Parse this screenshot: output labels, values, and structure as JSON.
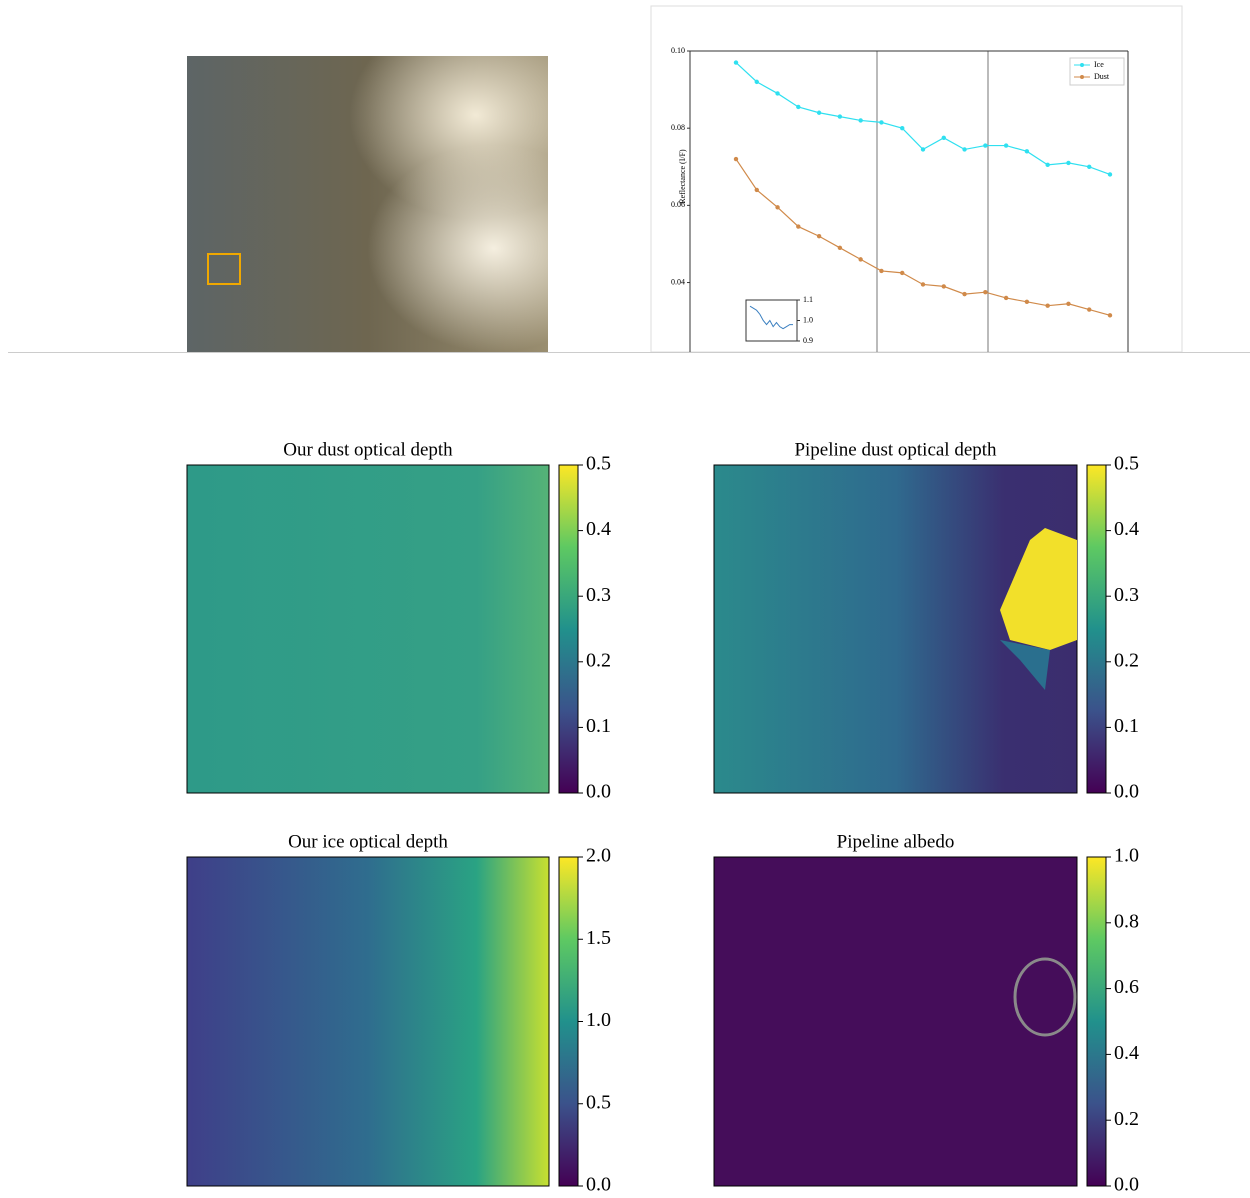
{
  "chart_data": [
    {
      "type": "line",
      "y_label": "Reflectance (I/F)",
      "categories": [
        null,
        null,
        null,
        null,
        null,
        null,
        null,
        null,
        null,
        null,
        null,
        null,
        null,
        null,
        null,
        null,
        null,
        null,
        null
      ],
      "ylim": [
        0.022,
        0.1
      ],
      "yticks": [
        0.04,
        0.06,
        0.08,
        {
          "value": 0.1,
          "label": "0.10"
        }
      ],
      "legend": "upper right",
      "series": [
        {
          "name": "Ice",
          "color": "#2fe0f0",
          "values": [
            0.097,
            0.092,
            0.089,
            0.0855,
            0.084,
            0.083,
            0.082,
            0.0815,
            0.08,
            0.0745,
            0.0775,
            0.0745,
            0.0755,
            0.0755,
            0.074,
            0.0705,
            0.071,
            0.07,
            0.068
          ]
        },
        {
          "name": "Dust",
          "color": "#d08a4a",
          "values": [
            0.072,
            0.064,
            0.0595,
            0.0545,
            0.052,
            0.049,
            0.046,
            0.043,
            0.0425,
            0.0395,
            0.039,
            0.037,
            0.0375,
            0.036,
            0.035,
            0.034,
            0.0345,
            0.033,
            0.0315
          ]
        }
      ]
    },
    {
      "type": "inset",
      "ylim": [
        0.9,
        1.1
      ],
      "yticks": [
        0.9,
        {
          "value": 1,
          "label": "1.0"
        },
        1.1
      ],
      "color": "#3a7fc0",
      "values": [
        1.07,
        1.06,
        1.05,
        1.03,
        1.0,
        0.98,
        1.0,
        0.97,
        0.99,
        0.97,
        0.96,
        0.97,
        0.98,
        0.98
      ]
    },
    {
      "type": "heatmap",
      "title": "Our dust optical depth",
      "clim": [
        0,
        0.5
      ],
      "ticks": [
        {
          "value": 0,
          "label": "0.0"
        },
        0.1,
        0.2,
        0.3,
        0.4,
        0.5
      ]
    },
    {
      "type": "heatmap",
      "title": "Pipeline dust optical depth",
      "clim": [
        0,
        0.5
      ],
      "ticks": [
        {
          "value": 0,
          "label": "0.0"
        },
        0.1,
        0.2,
        0.3,
        0.4,
        0.5
      ]
    },
    {
      "type": "heatmap",
      "title": "Our ice optical depth",
      "clim": [
        0,
        2
      ],
      "ticks": [
        {
          "value": 0,
          "label": "0.0"
        },
        0.5,
        {
          "value": 1,
          "label": "1.0"
        },
        1.5,
        {
          "value": 2,
          "label": "2.0"
        }
      ]
    },
    {
      "type": "heatmap",
      "title": "Pipeline albedo",
      "clim": [
        0,
        1
      ],
      "ticks": [
        {
          "value": 0,
          "label": "0.0"
        },
        0.2,
        0.4,
        0.6,
        0.8,
        {
          "value": 1,
          "label": "1.0"
        }
      ]
    }
  ]
}
